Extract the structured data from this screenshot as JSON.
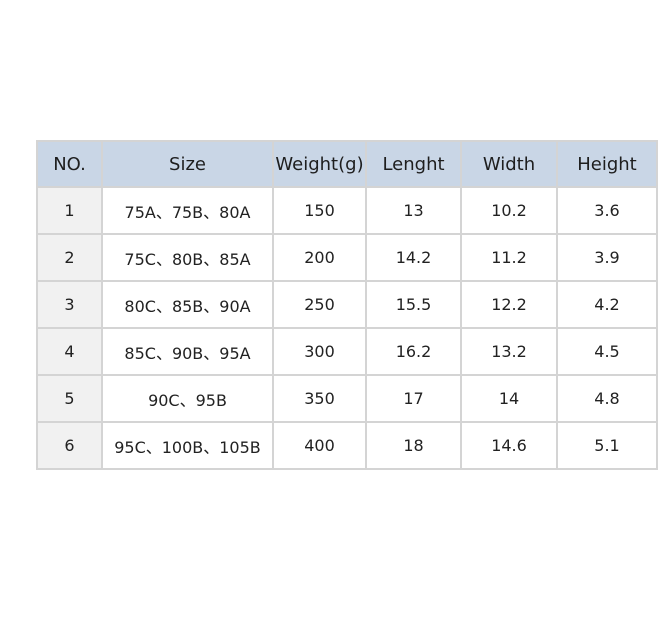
{
  "table": {
    "headers": [
      "NO.",
      "Size",
      "Weight(g)",
      "Lenght",
      "Width",
      "Height"
    ],
    "rows": [
      [
        "1",
        "75A、75B、80A",
        "150",
        "13",
        "10.2",
        "3.6"
      ],
      [
        "2",
        "75C、80B、85A",
        "200",
        "14.2",
        "11.2",
        "3.9"
      ],
      [
        "3",
        "80C、85B、90A",
        "250",
        "15.5",
        "12.2",
        "4.2"
      ],
      [
        "4",
        "85C、90B、95A",
        "300",
        "16.2",
        "13.2",
        "4.5"
      ],
      [
        "5",
        "90C、95B",
        "350",
        "17",
        "14",
        "4.8"
      ],
      [
        "6",
        "95C、100B、105B",
        "400",
        "18",
        "14.6",
        "5.1"
      ]
    ]
  },
  "colors": {
    "header_bg": "#c9d6e6",
    "first_col_bg": "#f1f1f1",
    "border": "#d4d4d4"
  }
}
